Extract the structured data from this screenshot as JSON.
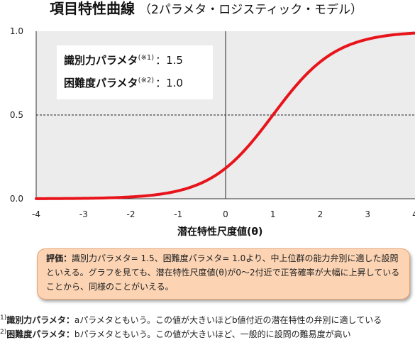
{
  "header": {
    "title": "項目特性曲線",
    "subtitle": "（2パラメタ・ロジスティック・モデル）"
  },
  "params": {
    "discrimination_label": "識別力パラメタ",
    "discrimination_note": "(※1)",
    "discrimination_value": "：1.5",
    "difficulty_label": "困難度パラメタ",
    "difficulty_note": "(※2)",
    "difficulty_value": "：1.0"
  },
  "evaluation": {
    "label": "評価：",
    "text": "識別力パラメタ= 1.5、困難度パラメタ= 1.0より、中上位群の能力弁別に適した設問といえる。グラフを見ても、潜在特性尺度値(θ)が0～2付近で正答確率が大幅に上昇していることから、同様のことがいえる。"
  },
  "notes": [
    {
      "mark": "1)",
      "name": "識別力パラメタ：",
      "text": "aパラメタともいう。この値が大きいほどb値付近の潜在特性の弁別に適している"
    },
    {
      "mark": "2)",
      "name": "困難度パラメタ：",
      "text": "bパラメタともいう。この値が大きいほど、一般的に設問の難易度が高い"
    }
  ],
  "chart_data": {
    "type": "line",
    "title": "項目特性曲線",
    "xlabel": "潜在特性尺度値(θ)",
    "ylabel": "",
    "xlim": [
      -4,
      4
    ],
    "ylim": [
      0,
      1
    ],
    "x_ticks": [
      "-4",
      "-3",
      "-2",
      "-1",
      "0",
      "1",
      "2",
      "3",
      "4"
    ],
    "y_ticks": [
      "0.0",
      "0.5",
      "1.0"
    ],
    "reference_lines": {
      "x": 0,
      "y": 0.5
    },
    "grid": false,
    "colors": {
      "curve": "#e8141b",
      "plot_background": "#ececec"
    },
    "series": [
      {
        "name": "",
        "model": "2PL logistic",
        "a": 1.5,
        "b": 1.0,
        "x": [
          -4,
          -3.5,
          -3,
          -2.5,
          -2,
          -1.5,
          -1,
          -0.5,
          0,
          0.5,
          1,
          1.5,
          2,
          2.5,
          3,
          3.5,
          4
        ],
        "y": [
          0.001,
          0.002,
          0.002,
          0.005,
          0.011,
          0.023,
          0.047,
          0.095,
          0.182,
          0.321,
          0.5,
          0.679,
          0.818,
          0.905,
          0.953,
          0.977,
          0.989
        ]
      }
    ]
  }
}
